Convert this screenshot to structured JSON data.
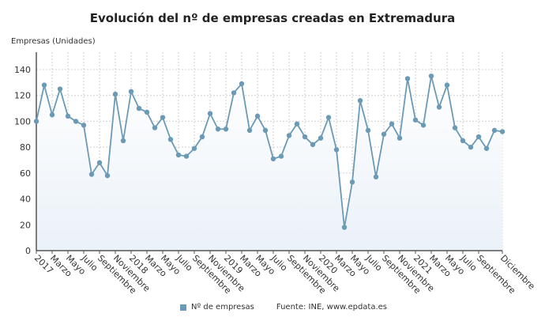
{
  "chart_data": {
    "type": "line",
    "title": "Evolución del nº de empresas creadas en Extremadura",
    "ylabel": "Empresas (Unidades)",
    "xlabel": "",
    "ylim": [
      0,
      140
    ],
    "yticks": [
      0,
      20,
      40,
      60,
      80,
      100,
      120,
      140
    ],
    "grid": true,
    "legend_position": "bottom",
    "color": "#6a9ab5",
    "x_tick_labels": [
      "2017",
      "Marzo",
      "Mayo",
      "Julio",
      "Septiembre",
      "Noviembre",
      "2018",
      "Marzo",
      "Mayo",
      "Julio",
      "Septiembre",
      "Noviembre",
      "2019",
      "Marzo",
      "Mayo",
      "Julio",
      "Septiembre",
      "Noviembre",
      "2020",
      "Marzo",
      "Mayo",
      "Julio",
      "Septiembre",
      "Noviembre",
      "2021",
      "Marzo",
      "Mayo",
      "Julio",
      "Septiembre",
      "Diciembre"
    ],
    "series": [
      {
        "name": "Nº de empresas",
        "values": [
          100,
          128,
          105,
          125,
          104,
          100,
          97,
          59,
          68,
          58,
          121,
          85,
          123,
          110,
          107,
          95,
          103,
          86,
          74,
          73,
          79,
          88,
          106,
          94,
          94,
          122,
          129,
          93,
          104,
          93,
          71,
          73,
          89,
          98,
          88,
          82,
          87,
          103,
          78,
          18,
          53,
          116,
          93,
          57,
          90,
          98,
          87,
          133,
          101,
          97,
          135,
          111,
          128,
          95,
          85,
          80,
          88,
          79,
          93,
          92
        ]
      }
    ]
  },
  "legend": {
    "series_label": "Nº de empresas",
    "source": "Fuente: INE, www.epdata.es"
  }
}
